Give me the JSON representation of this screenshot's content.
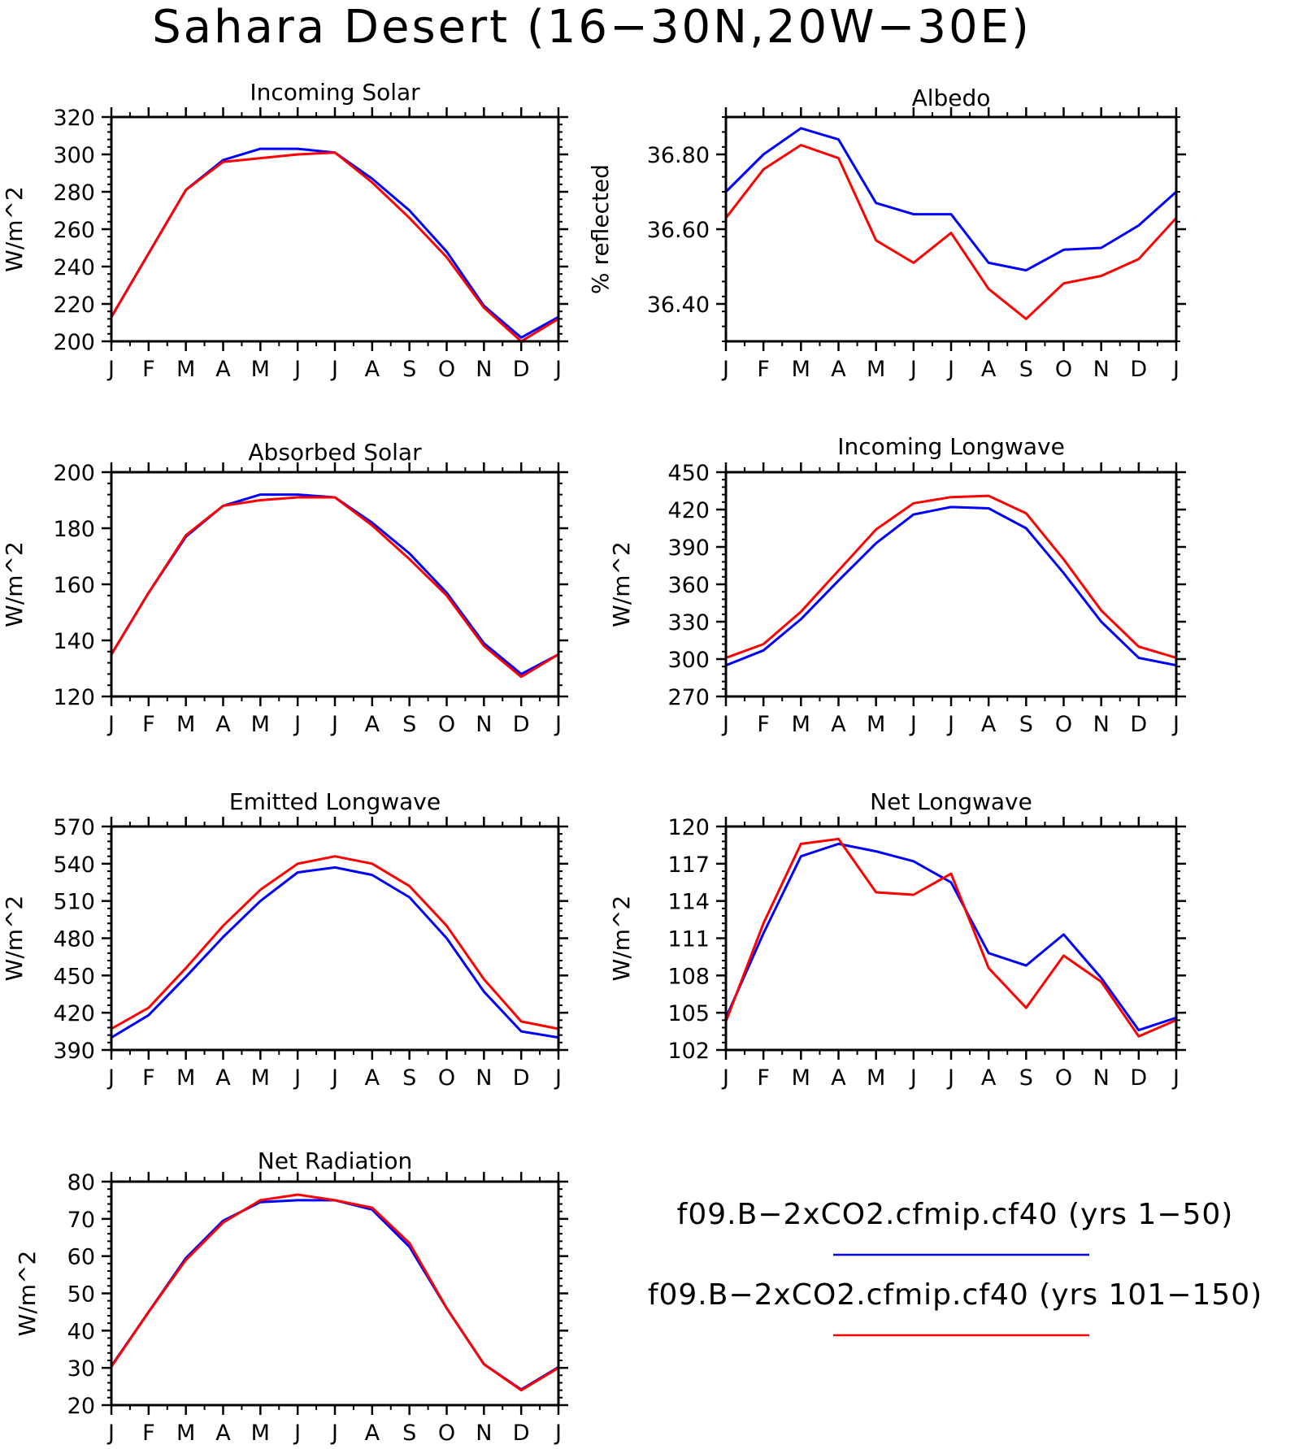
{
  "title": "Sahara Desert (16−30N,20W−30E)",
  "months": [
    "J",
    "F",
    "M",
    "A",
    "M",
    "J",
    "J",
    "A",
    "S",
    "O",
    "N",
    "D",
    "J"
  ],
  "colors": {
    "series_1": "#0000ff",
    "series_2": "#ff0000"
  },
  "legend": [
    {
      "label": "f09.B−2xCO2.cfmip.cf40 (yrs 1−50)",
      "color": "#0000ff"
    },
    {
      "label": "f09.B−2xCO2.cfmip.cf40 (yrs 101−150)",
      "color": "#ff0000"
    }
  ],
  "chart_data": [
    {
      "type": "line",
      "title": "Incoming Solar",
      "ylabel": "W/m^2",
      "ylim": [
        200,
        320
      ],
      "yticks": [
        200,
        220,
        240,
        260,
        280,
        300,
        320
      ],
      "ytick_labels": [
        "200",
        "220",
        "240",
        "260",
        "280",
        "300",
        "320"
      ],
      "x": [
        "J",
        "F",
        "M",
        "A",
        "M",
        "J",
        "J",
        "A",
        "S",
        "O",
        "N",
        "D",
        "J"
      ],
      "series": [
        {
          "values": [
            213,
            247,
            281,
            297,
            303,
            303,
            301,
            287,
            270,
            248,
            219,
            202,
            213
          ],
          "color": "#0000ff"
        },
        {
          "values": [
            213,
            247,
            281,
            296,
            298,
            300,
            301,
            285,
            266,
            245,
            218,
            200,
            212
          ],
          "color": "#ff0000"
        }
      ]
    },
    {
      "type": "line",
      "title": "Albedo",
      "ylabel": "% reflected",
      "ylim": [
        36.3,
        36.9
      ],
      "yticks": [
        36.4,
        36.6,
        36.8
      ],
      "ytick_labels": [
        "36.40",
        "36.60",
        "36.80"
      ],
      "x": [
        "J",
        "F",
        "M",
        "A",
        "M",
        "J",
        "J",
        "A",
        "S",
        "O",
        "N",
        "D",
        "J"
      ],
      "series": [
        {
          "values": [
            36.7,
            36.8,
            36.87,
            36.84,
            36.67,
            36.64,
            36.64,
            36.51,
            36.49,
            36.545,
            36.55,
            36.61,
            36.7
          ],
          "color": "#0000ff"
        },
        {
          "values": [
            36.63,
            36.76,
            36.825,
            36.79,
            36.57,
            36.51,
            36.59,
            36.44,
            36.36,
            36.455,
            36.475,
            36.52,
            36.63
          ],
          "color": "#ff0000"
        }
      ]
    },
    {
      "type": "line",
      "title": "Absorbed Solar",
      "ylabel": "W/m^2",
      "ylim": [
        120,
        200
      ],
      "yticks": [
        120,
        140,
        160,
        180,
        200
      ],
      "ytick_labels": [
        "120",
        "140",
        "160",
        "180",
        "200"
      ],
      "x": [
        "J",
        "F",
        "M",
        "A",
        "M",
        "J",
        "J",
        "A",
        "S",
        "O",
        "N",
        "D",
        "J"
      ],
      "series": [
        {
          "values": [
            135,
            157,
            177,
            188,
            192,
            192,
            191,
            182,
            171,
            157,
            139,
            128,
            135
          ],
          "color": "#0000ff"
        },
        {
          "values": [
            135,
            157,
            177.5,
            188,
            190,
            191,
            191,
            181,
            169,
            156,
            138,
            127,
            135
          ],
          "color": "#ff0000"
        }
      ]
    },
    {
      "type": "line",
      "title": "Incoming Longwave",
      "ylabel": "W/m^2",
      "ylim": [
        270,
        450
      ],
      "yticks": [
        270,
        300,
        330,
        360,
        390,
        420,
        450
      ],
      "ytick_labels": [
        "270",
        "300",
        "330",
        "360",
        "390",
        "420",
        "450"
      ],
      "x": [
        "J",
        "F",
        "M",
        "A",
        "M",
        "J",
        "J",
        "A",
        "S",
        "O",
        "N",
        "D",
        "J"
      ],
      "series": [
        {
          "values": [
            295,
            307,
            332,
            363,
            393,
            416,
            422,
            421,
            405,
            369,
            330,
            301,
            295
          ],
          "color": "#0000ff"
        },
        {
          "values": [
            301,
            312,
            338,
            371,
            404,
            425,
            430,
            431,
            417,
            380,
            339,
            310,
            301
          ],
          "color": "#ff0000"
        }
      ]
    },
    {
      "type": "line",
      "title": "Emitted Longwave",
      "ylabel": "W/m^2",
      "ylim": [
        390,
        570
      ],
      "yticks": [
        390,
        420,
        450,
        480,
        510,
        540,
        570
      ],
      "ytick_labels": [
        "390",
        "420",
        "450",
        "480",
        "510",
        "540",
        "570"
      ],
      "x": [
        "J",
        "F",
        "M",
        "A",
        "M",
        "J",
        "J",
        "A",
        "S",
        "O",
        "N",
        "D",
        "J"
      ],
      "series": [
        {
          "values": [
            400,
            418,
            449,
            481,
            510,
            533,
            537,
            531,
            513,
            480,
            437,
            405,
            400
          ],
          "color": "#0000ff"
        },
        {
          "values": [
            407,
            424,
            456,
            490,
            519,
            540,
            546,
            540,
            522,
            490,
            447,
            413,
            407
          ],
          "color": "#ff0000"
        }
      ]
    },
    {
      "type": "line",
      "title": "Net Longwave",
      "ylabel": "W/m^2",
      "ylim": [
        102,
        120
      ],
      "yticks": [
        102,
        105,
        108,
        111,
        114,
        117,
        120
      ],
      "ytick_labels": [
        "102",
        "105",
        "108",
        "111",
        "114",
        "117",
        "120"
      ],
      "x": [
        "J",
        "F",
        "M",
        "A",
        "M",
        "J",
        "J",
        "A",
        "S",
        "O",
        "N",
        "D",
        "J"
      ],
      "series": [
        {
          "values": [
            104.6,
            111.4,
            117.6,
            118.6,
            118.0,
            117.2,
            115.5,
            109.8,
            108.8,
            111.3,
            107.8,
            103.6,
            104.6
          ],
          "color": "#0000ff"
        },
        {
          "values": [
            104.3,
            112.2,
            118.6,
            119.0,
            114.7,
            114.5,
            116.2,
            108.6,
            105.4,
            109.6,
            107.5,
            103.1,
            104.4
          ],
          "color": "#ff0000"
        }
      ]
    },
    {
      "type": "line",
      "title": "Net Radiation",
      "ylabel": "W/m^2",
      "ylim": [
        20,
        80
      ],
      "yticks": [
        20,
        30,
        40,
        50,
        60,
        70,
        80
      ],
      "ytick_labels": [
        "20",
        "30",
        "40",
        "50",
        "60",
        "70",
        "80"
      ],
      "x": [
        "J",
        "F",
        "M",
        "A",
        "M",
        "J",
        "J",
        "A",
        "S",
        "O",
        "N",
        "D",
        "J"
      ],
      "series": [
        {
          "values": [
            30.5,
            45,
            59.5,
            69.5,
            74.5,
            75,
            75,
            72.5,
            62.5,
            46,
            31,
            24.2,
            30.2
          ],
          "color": "#0000ff"
        },
        {
          "values": [
            30.3,
            45,
            59,
            69,
            75,
            76.5,
            75,
            73,
            63.5,
            46,
            31,
            24,
            30
          ],
          "color": "#ff0000"
        }
      ]
    }
  ]
}
